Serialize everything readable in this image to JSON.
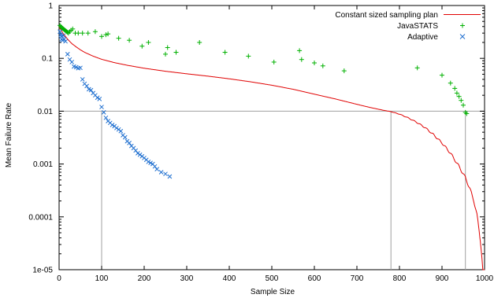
{
  "chart_data": {
    "type": "scatter",
    "xlabel": "Sample Size",
    "ylabel": "Mean Failure Rate",
    "xlim": [
      0,
      1000
    ],
    "ylim": [
      1e-05,
      1
    ],
    "yscale": "log",
    "x_ticks": [
      0,
      100,
      200,
      300,
      400,
      500,
      600,
      700,
      800,
      900,
      1000
    ],
    "x_tick_labels": [
      "0",
      "100",
      "200",
      "300",
      "400",
      "500",
      "600",
      "700",
      "800",
      "900",
      "1000"
    ],
    "y_ticks": [
      1e-05,
      0.0001,
      0.001,
      0.01,
      0.1,
      1
    ],
    "y_tick_labels": [
      "1e-05",
      "0.0001",
      "0.001",
      "0.01",
      "0.1",
      "1"
    ],
    "legend_position": "top-right",
    "reference_lines": [
      {
        "type": "horizontal",
        "y": 0.01,
        "color": "#a0a0a0"
      },
      {
        "type": "vertical",
        "x": 100,
        "y_from": 1e-05,
        "y_to": 0.01,
        "color": "#a0a0a0"
      },
      {
        "type": "vertical",
        "x": 780,
        "y_from": 1e-05,
        "y_to": 0.01,
        "color": "#a0a0a0"
      },
      {
        "type": "vertical",
        "x": 955,
        "y_from": 1e-05,
        "y_to": 0.01,
        "color": "#a0a0a0"
      }
    ],
    "series": [
      {
        "name": "Constant sized sampling plan",
        "type": "line",
        "color": "#e00000",
        "x": [
          0,
          2,
          5,
          8,
          10,
          15,
          20,
          30,
          40,
          50,
          60,
          80,
          100,
          130,
          160,
          200,
          250,
          300,
          350,
          400,
          450,
          500,
          550,
          600,
          650,
          700,
          730,
          760,
          780,
          800,
          820,
          840,
          860,
          880,
          900,
          920,
          940,
          955,
          965,
          975,
          982,
          988,
          993,
          996,
          998,
          1000
        ],
        "y": [
          0.4,
          0.37,
          0.34,
          0.31,
          0.29,
          0.26,
          0.23,
          0.19,
          0.165,
          0.145,
          0.13,
          0.11,
          0.096,
          0.083,
          0.074,
          0.065,
          0.057,
          0.051,
          0.046,
          0.041,
          0.036,
          0.031,
          0.026,
          0.021,
          0.017,
          0.0135,
          0.0118,
          0.0105,
          0.0098,
          0.0088,
          0.0075,
          0.0062,
          0.0049,
          0.0036,
          0.0025,
          0.0016,
          0.0009,
          0.00055,
          0.00035,
          0.0002,
          0.00011,
          5e-05,
          2e-05,
          1e-05,
          1e-05,
          1e-05
        ]
      },
      {
        "name": "JavaSTATS",
        "type": "points",
        "marker": "+",
        "color": "#00b000",
        "x": [
          2,
          4,
          6,
          8,
          10,
          12,
          14,
          16,
          18,
          20,
          22,
          25,
          28,
          32,
          38,
          45,
          55,
          68,
          85,
          100,
          110,
          115,
          140,
          165,
          195,
          210,
          250,
          255,
          275,
          330,
          390,
          445,
          505,
          565,
          570,
          600,
          620,
          670,
          842,
          900,
          920,
          930,
          935,
          940,
          945,
          950,
          955,
          958
        ],
        "y": [
          0.42,
          0.4,
          0.38,
          0.37,
          0.36,
          0.35,
          0.34,
          0.33,
          0.32,
          0.31,
          0.3,
          0.32,
          0.34,
          0.36,
          0.3,
          0.3,
          0.3,
          0.3,
          0.32,
          0.26,
          0.28,
          0.29,
          0.24,
          0.22,
          0.17,
          0.2,
          0.12,
          0.16,
          0.13,
          0.2,
          0.13,
          0.11,
          0.085,
          0.14,
          0.095,
          0.082,
          0.072,
          0.058,
          0.066,
          0.048,
          0.034,
          0.027,
          0.022,
          0.019,
          0.016,
          0.013,
          0.0095,
          0.009
        ]
      },
      {
        "name": "Adaptive",
        "type": "points",
        "marker": "x",
        "color": "#2070d0",
        "x": [
          2,
          4,
          5,
          6,
          8,
          10,
          12,
          15,
          20,
          25,
          30,
          35,
          40,
          45,
          50,
          55,
          60,
          65,
          70,
          75,
          80,
          85,
          90,
          95,
          100,
          105,
          110,
          115,
          120,
          125,
          130,
          135,
          140,
          145,
          150,
          155,
          160,
          165,
          170,
          175,
          180,
          185,
          190,
          195,
          200,
          205,
          210,
          215,
          220,
          225,
          230,
          240,
          250,
          260
        ],
        "y": [
          0.32,
          0.28,
          0.26,
          0.23,
          0.22,
          0.27,
          0.23,
          0.21,
          0.12,
          0.095,
          0.085,
          0.07,
          0.068,
          0.065,
          0.066,
          0.04,
          0.033,
          0.03,
          0.026,
          0.025,
          0.022,
          0.02,
          0.018,
          0.017,
          0.012,
          0.0095,
          0.0075,
          0.0065,
          0.006,
          0.0055,
          0.0052,
          0.0048,
          0.0045,
          0.0042,
          0.0035,
          0.0032,
          0.0027,
          0.0025,
          0.0022,
          0.002,
          0.0018,
          0.0016,
          0.0015,
          0.0014,
          0.0013,
          0.0012,
          0.0011,
          0.00105,
          0.001,
          0.0009,
          0.0008,
          0.0007,
          0.00065,
          0.00058
        ]
      }
    ]
  }
}
